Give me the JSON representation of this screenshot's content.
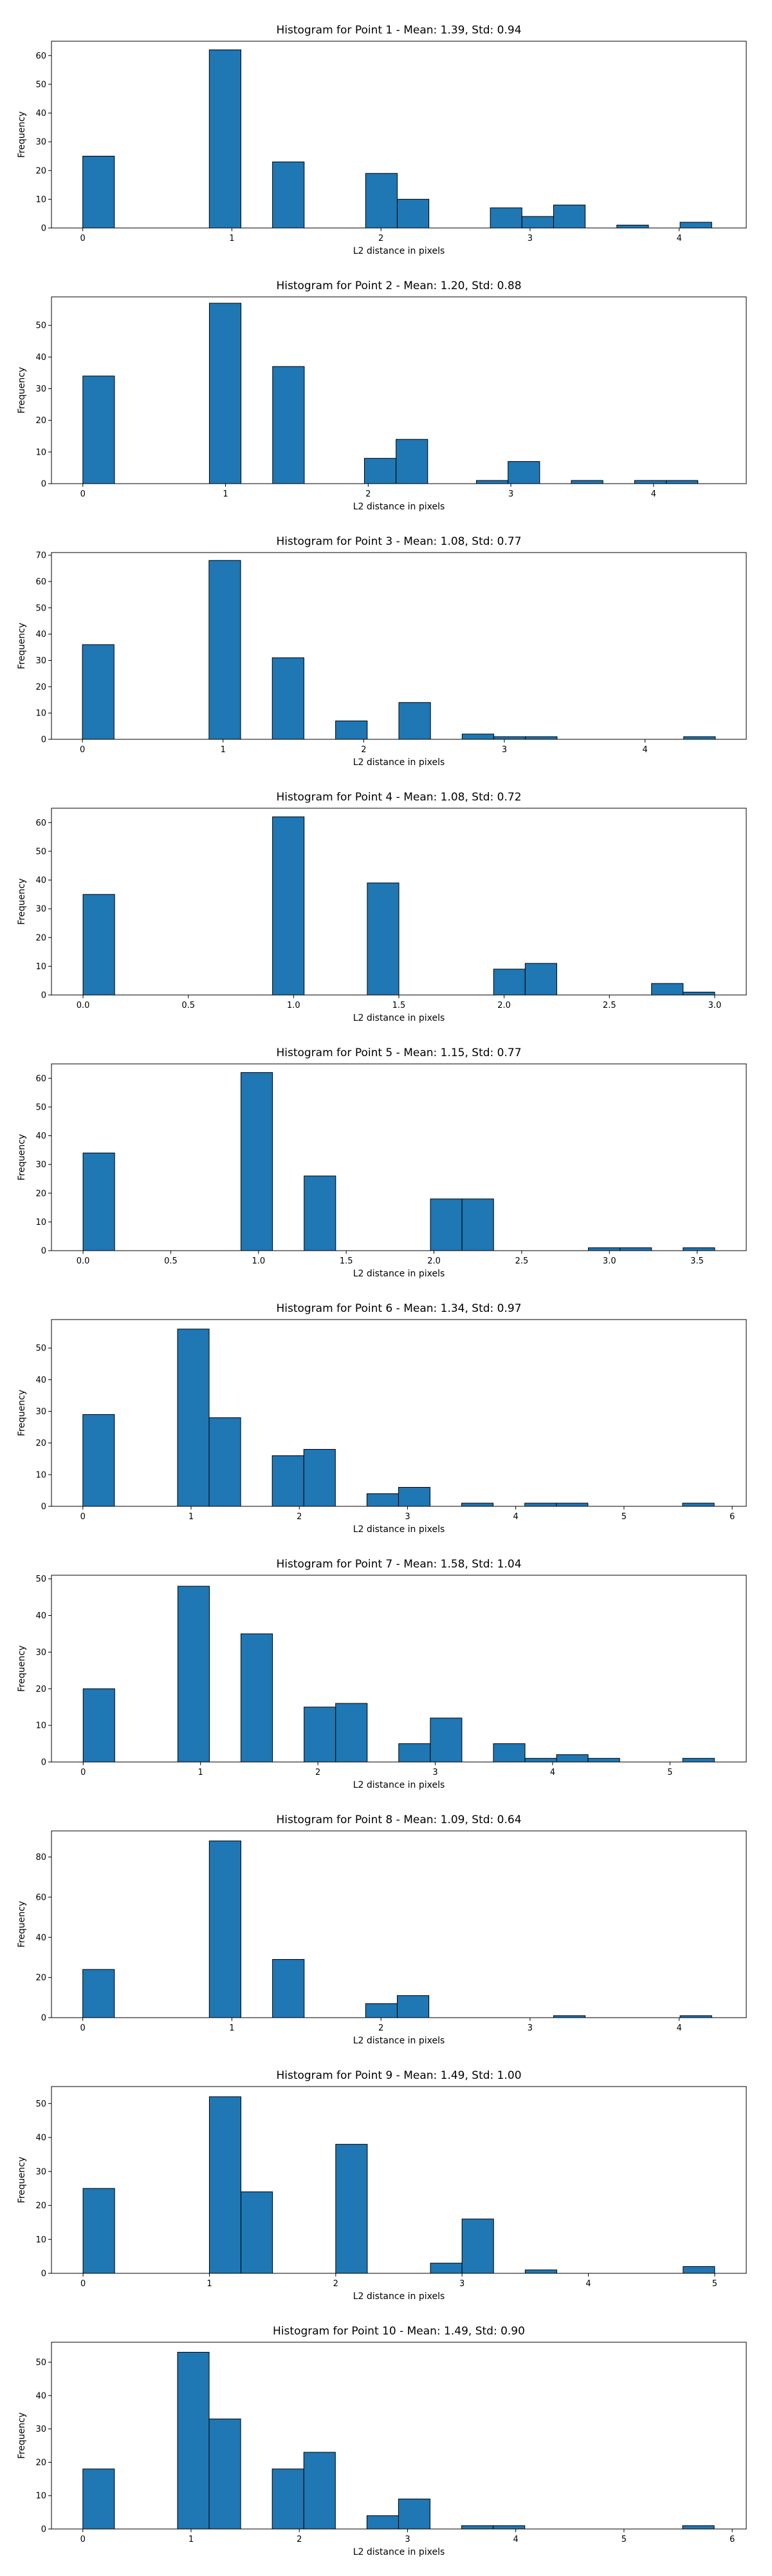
{
  "chart_data": [
    {
      "type": "bar",
      "title": "Histogram for Point 1 - Mean: 1.39, Std: 0.94",
      "xlabel": "L2 distance in pixels",
      "ylabel": "Frequency",
      "xlim": [
        -0.21,
        4.45
      ],
      "ylim": [
        0,
        65
      ],
      "xticks": [
        0,
        1,
        2,
        3,
        4
      ],
      "xtick_labels": [
        "0",
        "1",
        "2",
        "3",
        "4"
      ],
      "yticks": [
        0,
        10,
        20,
        30,
        40,
        50,
        60
      ],
      "bin_width": 0.2121,
      "bars": [
        {
          "x": 0.0,
          "value": 25
        },
        {
          "x": 0.8485,
          "value": 62
        },
        {
          "x": 1.2727,
          "value": 23
        },
        {
          "x": 1.897,
          "value": 19
        },
        {
          "x": 2.1091,
          "value": 10
        },
        {
          "x": 2.7333,
          "value": 7
        },
        {
          "x": 2.9455,
          "value": 4
        },
        {
          "x": 3.1576,
          "value": 8
        },
        {
          "x": 3.5818,
          "value": 1
        },
        {
          "x": 4.0061,
          "value": 2
        }
      ]
    },
    {
      "type": "bar",
      "title": "Histogram for Point 2 - Mean: 1.20, Std: 0.88",
      "xlabel": "L2 distance in pixels",
      "ylabel": "Frequency",
      "xlim": [
        -0.22,
        4.65
      ],
      "ylim": [
        0,
        59
      ],
      "xticks": [
        0,
        1,
        2,
        3,
        4
      ],
      "xtick_labels": [
        "0",
        "1",
        "2",
        "3",
        "4"
      ],
      "yticks": [
        0,
        10,
        20,
        30,
        40,
        50
      ],
      "bin_width": 0.2217,
      "bars": [
        {
          "x": 0.0,
          "value": 34
        },
        {
          "x": 0.8868,
          "value": 57
        },
        {
          "x": 1.3302,
          "value": 37
        },
        {
          "x": 1.9736,
          "value": 8
        },
        {
          "x": 2.1953,
          "value": 14
        },
        {
          "x": 2.7585,
          "value": 1
        },
        {
          "x": 2.9802,
          "value": 7
        },
        {
          "x": 3.4236,
          "value": 1
        },
        {
          "x": 3.867,
          "value": 1
        },
        {
          "x": 4.0887,
          "value": 1
        }
      ]
    },
    {
      "type": "bar",
      "title": "Histogram for Point 3 - Mean: 1.08, Std: 0.77",
      "xlabel": "L2 distance in pixels",
      "ylabel": "Frequency",
      "xlim": [
        -0.22,
        4.72
      ],
      "ylim": [
        0,
        71
      ],
      "xticks": [
        0,
        1,
        2,
        3,
        4
      ],
      "xtick_labels": [
        "0",
        "1",
        "2",
        "3",
        "4"
      ],
      "yticks": [
        0,
        10,
        20,
        30,
        40,
        50,
        60,
        70
      ],
      "bin_width": 0.225,
      "bars": [
        {
          "x": 0.0,
          "value": 36
        },
        {
          "x": 0.9,
          "value": 68
        },
        {
          "x": 1.35,
          "value": 31
        },
        {
          "x": 1.8,
          "value": 7
        },
        {
          "x": 2.25,
          "value": 14
        },
        {
          "x": 2.7,
          "value": 2
        },
        {
          "x": 2.925,
          "value": 1
        },
        {
          "x": 3.15,
          "value": 1
        },
        {
          "x": 4.275,
          "value": 1
        }
      ]
    },
    {
      "type": "bar",
      "title": "Histogram for Point 4 - Mean: 1.08, Std: 0.72",
      "xlabel": "L2 distance in pixels",
      "ylabel": "Frequency",
      "xlim": [
        -0.15,
        3.15
      ],
      "ylim": [
        0,
        65
      ],
      "xticks": [
        0.0,
        0.5,
        1.0,
        1.5,
        2.0,
        2.5,
        3.0
      ],
      "xtick_labels": [
        "0.0",
        "0.5",
        "1.0",
        "1.5",
        "2.0",
        "2.5",
        "3.0"
      ],
      "yticks": [
        0,
        10,
        20,
        30,
        40,
        50,
        60
      ],
      "bin_width": 0.15,
      "bars": [
        {
          "x": 0.0,
          "value": 35
        },
        {
          "x": 0.9,
          "value": 62
        },
        {
          "x": 1.35,
          "value": 39
        },
        {
          "x": 1.95,
          "value": 9
        },
        {
          "x": 2.1,
          "value": 11
        },
        {
          "x": 2.7,
          "value": 4
        },
        {
          "x": 2.85,
          "value": 1
        }
      ]
    },
    {
      "type": "bar",
      "title": "Histogram for Point 5 - Mean: 1.15, Std: 0.77",
      "xlabel": "L2 distance in pixels",
      "ylabel": "Frequency",
      "xlim": [
        -0.18,
        3.78
      ],
      "ylim": [
        0,
        65
      ],
      "xticks": [
        0.0,
        0.5,
        1.0,
        1.5,
        2.0,
        2.5,
        3.0,
        3.5
      ],
      "xtick_labels": [
        "0.0",
        "0.5",
        "1.0",
        "1.5",
        "2.0",
        "2.5",
        "3.0",
        "3.5"
      ],
      "yticks": [
        0,
        10,
        20,
        30,
        40,
        50,
        60
      ],
      "bin_width": 0.18,
      "bars": [
        {
          "x": 0.0,
          "value": 34
        },
        {
          "x": 0.9,
          "value": 62
        },
        {
          "x": 1.26,
          "value": 26
        },
        {
          "x": 1.98,
          "value": 18
        },
        {
          "x": 2.16,
          "value": 18
        },
        {
          "x": 2.88,
          "value": 1
        },
        {
          "x": 3.06,
          "value": 1
        },
        {
          "x": 3.42,
          "value": 1
        }
      ]
    },
    {
      "type": "bar",
      "title": "Histogram for Point 6 - Mean: 1.34, Std: 0.97",
      "xlabel": "L2 distance in pixels",
      "ylabel": "Frequency",
      "xlim": [
        -0.29,
        6.13
      ],
      "ylim": [
        0,
        59
      ],
      "xticks": [
        0,
        1,
        2,
        3,
        4,
        5,
        6
      ],
      "xtick_labels": [
        "0",
        "1",
        "2",
        "3",
        "4",
        "5",
        "6"
      ],
      "yticks": [
        0,
        10,
        20,
        30,
        40,
        50
      ],
      "bin_width": 0.2917,
      "bars": [
        {
          "x": 0.0,
          "value": 29
        },
        {
          "x": 0.875,
          "value": 56
        },
        {
          "x": 1.1667,
          "value": 28
        },
        {
          "x": 1.75,
          "value": 16
        },
        {
          "x": 2.0417,
          "value": 18
        },
        {
          "x": 2.625,
          "value": 4
        },
        {
          "x": 2.9167,
          "value": 6
        },
        {
          "x": 3.5,
          "value": 1
        },
        {
          "x": 4.0833,
          "value": 1
        },
        {
          "x": 4.375,
          "value": 1
        },
        {
          "x": 5.5417,
          "value": 1
        }
      ]
    },
    {
      "type": "bar",
      "title": "Histogram for Point 7 - Mean: 1.58, Std: 1.04",
      "xlabel": "L2 distance in pixels",
      "ylabel": "Frequency",
      "xlim": [
        -0.27,
        5.65
      ],
      "ylim": [
        0,
        51
      ],
      "xticks": [
        0,
        1,
        2,
        3,
        4,
        5
      ],
      "xtick_labels": [
        "0",
        "1",
        "2",
        "3",
        "4",
        "5"
      ],
      "yticks": [
        0,
        10,
        20,
        30,
        40,
        50
      ],
      "bin_width": 0.2689,
      "bars": [
        {
          "x": 0.0,
          "value": 20
        },
        {
          "x": 0.8067,
          "value": 48
        },
        {
          "x": 1.3445,
          "value": 35
        },
        {
          "x": 1.8823,
          "value": 15
        },
        {
          "x": 2.1512,
          "value": 16
        },
        {
          "x": 2.689,
          "value": 5
        },
        {
          "x": 2.9579,
          "value": 12
        },
        {
          "x": 3.4957,
          "value": 5
        },
        {
          "x": 3.7646,
          "value": 1
        },
        {
          "x": 4.0335,
          "value": 2
        },
        {
          "x": 4.3024,
          "value": 1
        },
        {
          "x": 5.1091,
          "value": 1
        }
      ]
    },
    {
      "type": "bar",
      "title": "Histogram for Point 8 - Mean: 1.09, Std: 0.64",
      "xlabel": "L2 distance in pixels",
      "ylabel": "Frequency",
      "xlim": [
        -0.21,
        4.45
      ],
      "ylim": [
        0,
        93
      ],
      "xticks": [
        0,
        1,
        2,
        3,
        4
      ],
      "xtick_labels": [
        "0",
        "1",
        "2",
        "3",
        "4"
      ],
      "yticks": [
        0,
        20,
        40,
        60,
        80
      ],
      "bin_width": 0.2121,
      "bars": [
        {
          "x": 0.0,
          "value": 24
        },
        {
          "x": 0.8485,
          "value": 88
        },
        {
          "x": 1.2727,
          "value": 29
        },
        {
          "x": 1.897,
          "value": 7
        },
        {
          "x": 2.1091,
          "value": 11
        },
        {
          "x": 3.1576,
          "value": 1
        },
        {
          "x": 4.0061,
          "value": 1
        }
      ]
    },
    {
      "type": "bar",
      "title": "Histogram for Point 9 - Mean: 1.49, Std: 1.00",
      "xlabel": "L2 distance in pixels",
      "ylabel": "Frequency",
      "xlim": [
        -0.25,
        5.25
      ],
      "ylim": [
        0,
        55
      ],
      "xticks": [
        0,
        1,
        2,
        3,
        4,
        5
      ],
      "xtick_labels": [
        "0",
        "1",
        "2",
        "3",
        "4",
        "5"
      ],
      "yticks": [
        0,
        10,
        20,
        30,
        40,
        50
      ],
      "bin_width": 0.25,
      "bars": [
        {
          "x": 0.0,
          "value": 25
        },
        {
          "x": 1.0,
          "value": 52
        },
        {
          "x": 1.25,
          "value": 24
        },
        {
          "x": 2.0,
          "value": 38
        },
        {
          "x": 2.75,
          "value": 3
        },
        {
          "x": 3.0,
          "value": 16
        },
        {
          "x": 3.5,
          "value": 1
        },
        {
          "x": 4.75,
          "value": 2
        }
      ]
    },
    {
      "type": "bar",
      "title": "Histogram for Point 10 - Mean: 1.49, Std: 0.90",
      "xlabel": "L2 distance in pixels",
      "ylabel": "Frequency",
      "xlim": [
        -0.29,
        6.13
      ],
      "ylim": [
        0,
        56
      ],
      "xticks": [
        0,
        1,
        2,
        3,
        4,
        5,
        6
      ],
      "xtick_labels": [
        "0",
        "1",
        "2",
        "3",
        "4",
        "5",
        "6"
      ],
      "yticks": [
        0,
        10,
        20,
        30,
        40,
        50
      ],
      "bin_width": 0.2917,
      "bars": [
        {
          "x": 0.0,
          "value": 18
        },
        {
          "x": 0.875,
          "value": 53
        },
        {
          "x": 1.1667,
          "value": 33
        },
        {
          "x": 1.75,
          "value": 18
        },
        {
          "x": 2.0417,
          "value": 23
        },
        {
          "x": 2.625,
          "value": 4
        },
        {
          "x": 2.9167,
          "value": 9
        },
        {
          "x": 3.5,
          "value": 1
        },
        {
          "x": 3.7917,
          "value": 1
        },
        {
          "x": 5.5417,
          "value": 1
        }
      ]
    }
  ],
  "style": {
    "bar_color": "#1f77b4",
    "edge_color": "#000000",
    "background": "#ffffff"
  }
}
